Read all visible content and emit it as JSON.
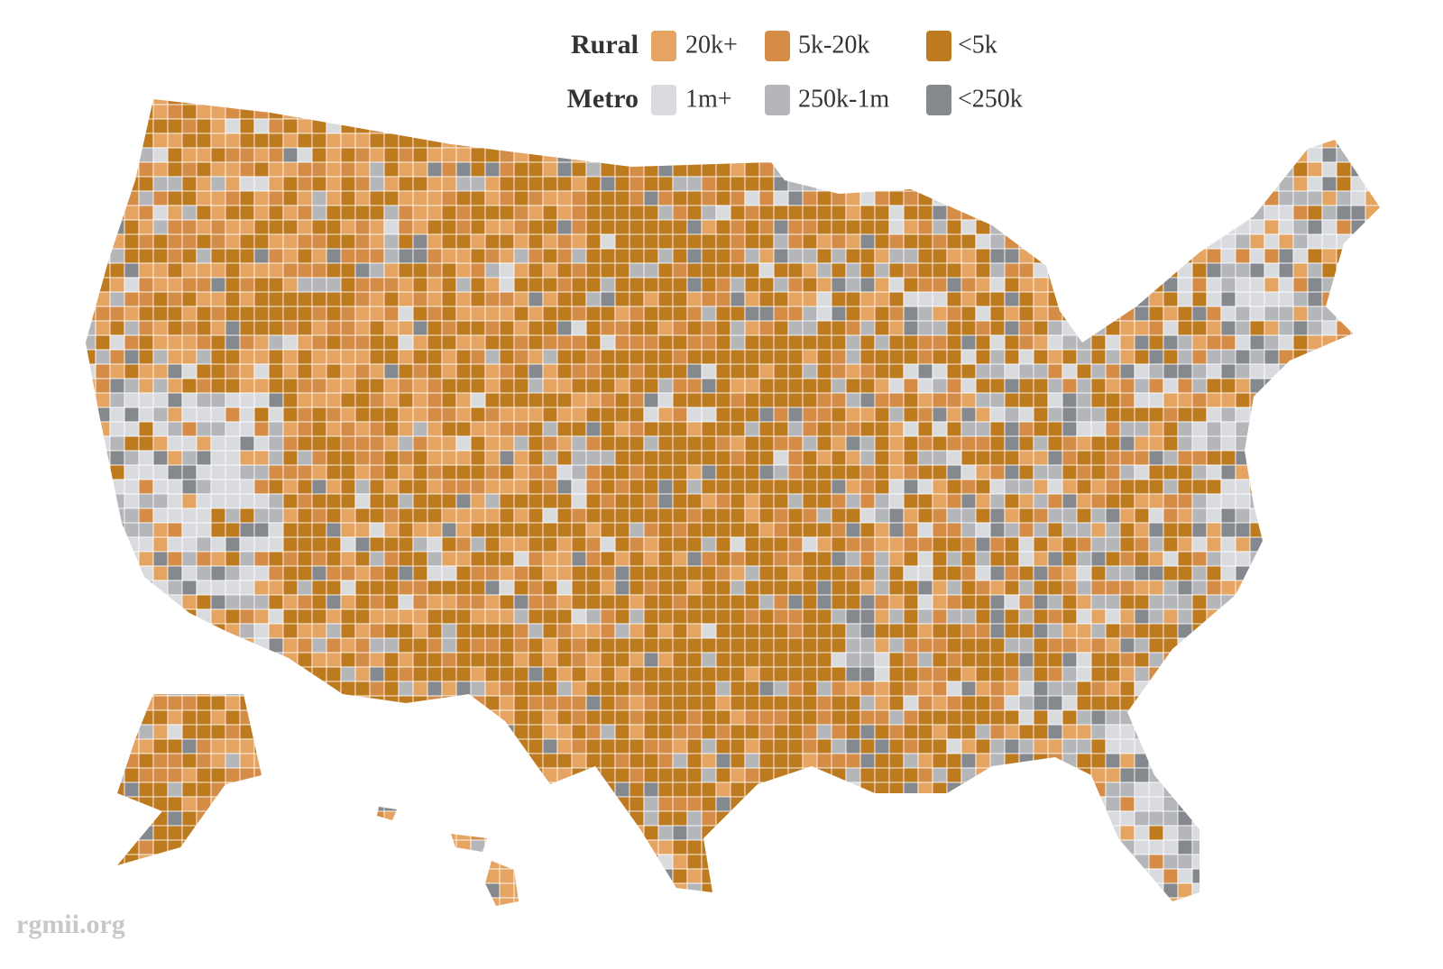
{
  "legend": {
    "rural": {
      "title": "Rural",
      "items": [
        {
          "label": "20k+",
          "color": "#e6a462"
        },
        {
          "label": "5k-20k",
          "color": "#d48c47"
        },
        {
          "label": "<5k",
          "color": "#bd7a1e"
        }
      ]
    },
    "metro": {
      "title": "Metro",
      "items": [
        {
          "label": "1m+",
          "color": "#dadbde"
        },
        {
          "label": "250k-1m",
          "color": "#b4b6ba"
        },
        {
          "label": "<250k",
          "color": "#85888c"
        }
      ]
    }
  },
  "credit": "rgmii.org"
}
